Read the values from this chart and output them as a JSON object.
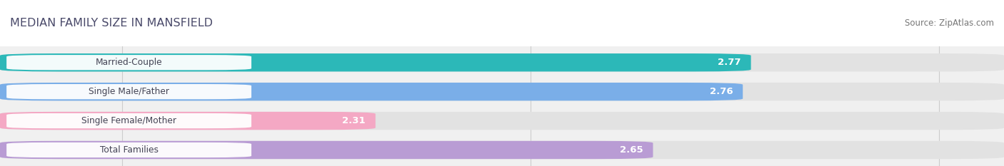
{
  "title": "MEDIAN FAMILY SIZE IN MANSFIELD",
  "source": "Source: ZipAtlas.com",
  "categories": [
    "Married-Couple",
    "Single Male/Father",
    "Single Female/Mother",
    "Total Families"
  ],
  "values": [
    2.77,
    2.76,
    2.31,
    2.65
  ],
  "bar_colors": [
    "#2cb8b8",
    "#7aaee8",
    "#f4a8c4",
    "#b99cd4"
  ],
  "xmin": 1.85,
  "xmax": 3.08,
  "xticks": [
    2.0,
    2.5,
    3.0
  ],
  "bar_height": 0.62,
  "background_color": "#ffffff",
  "bar_area_bg": "#f0f0f0",
  "bar_bg_color": "#e2e2e2",
  "title_color": "#4a4a6a",
  "source_color": "#777777"
}
